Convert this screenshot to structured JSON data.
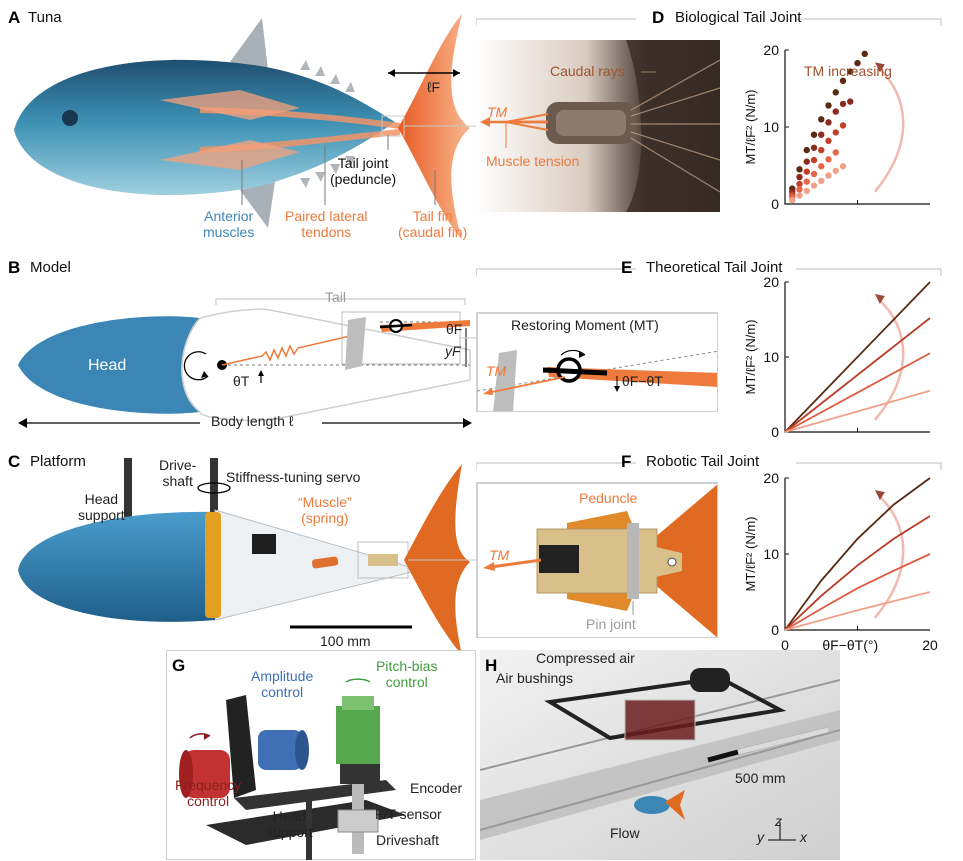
{
  "panels": {
    "A": {
      "letter": "A",
      "title": "Tuna",
      "fin_length": "ℓF",
      "tail_joint": "Tail joint",
      "tail_joint2": "(peduncle)",
      "anterior1": "Anterior",
      "anterior2": "muscles",
      "paired1": "Paired lateral",
      "paired2": "tendons",
      "fin1": "Tail fin",
      "fin2": "(caudal fin)"
    },
    "B": {
      "letter": "B",
      "title": "Model",
      "tail": "Tail",
      "head": "Head",
      "theta_t": "θT",
      "theta_f": "θF",
      "y_f": "yF",
      "body_length": "Body length ℓ"
    },
    "C": {
      "letter": "C",
      "title": "Platform",
      "drive1": "Drive-",
      "drive2": "shaft",
      "servo": "Stiffness-tuning servo",
      "head1": "Head",
      "head2": "support",
      "muscle1": "“Muscle”",
      "muscle2": "(spring)",
      "scale": "100 mm"
    },
    "D": {
      "letter": "D",
      "title": "Biological Tail Joint",
      "caudal_rays": "Caudal rays",
      "tm": "TM",
      "muscle_tension": "Muscle tension",
      "tm_increasing": "TM increasing"
    },
    "E": {
      "letter": "E",
      "title": "Theoretical Tail Joint",
      "restoring": "Restoring Moment (MT)",
      "tm": "TM",
      "angle": "θF−θT"
    },
    "F": {
      "letter": "F",
      "title": "Robotic Tail Joint",
      "peduncle": "Peduncle",
      "tm": "TM",
      "pin_joint": "Pin joint"
    },
    "G": {
      "letter": "G",
      "amp1": "Amplitude",
      "amp2": "control",
      "pitch1": "Pitch-bias",
      "pitch2": "control",
      "freq1": "Frequency",
      "freq2": "control",
      "encoder": "Encoder",
      "ft": "F/T sensor",
      "head1": "Head",
      "head2": "support",
      "driveshaft": "Driveshaft"
    },
    "H": {
      "letter": "H",
      "compressed": "Compressed air",
      "bushings": "Air bushings",
      "scale": "500 mm",
      "flow": "Flow",
      "ax_y": "y",
      "ax_z": "z",
      "ax_x": "x"
    }
  },
  "chart_data": [
    {
      "panel": "D",
      "type": "scatter",
      "ylabel": "MT/ℓF² (N/m)",
      "xlim": [
        0,
        20
      ],
      "ylim": [
        0,
        20
      ],
      "yticks": [
        "20",
        "10",
        "0"
      ],
      "series": [
        {
          "color": "#5a2a12",
          "points": [
            [
              1,
              2
            ],
            [
              2,
              4.5
            ],
            [
              3,
              7
            ],
            [
              4,
              9
            ],
            [
              5,
              11
            ],
            [
              6,
              12.8
            ],
            [
              7,
              14.5
            ],
            [
              8,
              16
            ],
            [
              9,
              17.2
            ],
            [
              10,
              18.3
            ],
            [
              11,
              19.5
            ]
          ]
        },
        {
          "color": "#8b2a20",
          "points": [
            [
              1,
              1.6
            ],
            [
              2,
              3.5
            ],
            [
              3,
              5.5
            ],
            [
              4,
              7.3
            ],
            [
              5,
              9
            ],
            [
              6,
              10.6
            ],
            [
              7,
              12
            ],
            [
              8,
              13
            ],
            [
              9,
              13.3
            ]
          ]
        },
        {
          "color": "#c2402a",
          "points": [
            [
              1,
              1.2
            ],
            [
              2,
              2.6
            ],
            [
              3,
              4.2
            ],
            [
              4,
              5.7
            ],
            [
              5,
              7
            ],
            [
              6,
              8.2
            ],
            [
              7,
              9.3
            ],
            [
              8,
              10.2
            ]
          ]
        },
        {
          "color": "#e86648",
          "points": [
            [
              1,
              0.9
            ],
            [
              2,
              1.9
            ],
            [
              3,
              2.9
            ],
            [
              4,
              3.9
            ],
            [
              5,
              4.9
            ],
            [
              6,
              5.8
            ],
            [
              7,
              6.7
            ]
          ]
        },
        {
          "color": "#f2a08a",
          "points": [
            [
              1,
              0.5
            ],
            [
              2,
              1.1
            ],
            [
              3,
              1.7
            ],
            [
              4,
              2.4
            ],
            [
              5,
              3
            ],
            [
              6,
              3.7
            ],
            [
              7,
              4.3
            ],
            [
              8,
              4.9
            ]
          ]
        }
      ]
    },
    {
      "panel": "E",
      "type": "line",
      "ylabel": "MT/ℓF² (N/m)",
      "xlim": [
        0,
        20
      ],
      "ylim": [
        0,
        20
      ],
      "yticks": [
        "20",
        "10",
        "0"
      ],
      "series": [
        {
          "color": "#5a2a12",
          "values": [
            [
              0,
              0
            ],
            [
              20,
              20
            ]
          ]
        },
        {
          "color": "#b83a26",
          "values": [
            [
              0,
              0
            ],
            [
              20,
              15.2
            ]
          ]
        },
        {
          "color": "#dd5a3e",
          "values": [
            [
              0,
              0
            ],
            [
              20,
              10.5
            ]
          ]
        },
        {
          "color": "#f2a08a",
          "values": [
            [
              0,
              0
            ],
            [
              20,
              5.5
            ]
          ]
        }
      ]
    },
    {
      "panel": "F",
      "type": "line",
      "ylabel": "MT/ℓF² (N/m)",
      "xlabel": "θF−θT(°)",
      "xlim": [
        0,
        20
      ],
      "ylim": [
        0,
        20
      ],
      "yticks": [
        "20",
        "10",
        "0"
      ],
      "xticks": [
        "0",
        "20"
      ],
      "series": [
        {
          "color": "#5a2a12",
          "values": [
            [
              0,
              0
            ],
            [
              5,
              6.5
            ],
            [
              10,
              12
            ],
            [
              15,
              16.5
            ],
            [
              20,
              20
            ]
          ]
        },
        {
          "color": "#b83a26",
          "values": [
            [
              0,
              0
            ],
            [
              5,
              4.5
            ],
            [
              10,
              8.5
            ],
            [
              15,
              12
            ],
            [
              20,
              15
            ]
          ]
        },
        {
          "color": "#dd5a3e",
          "values": [
            [
              0,
              0
            ],
            [
              5,
              2.8
            ],
            [
              10,
              5.5
            ],
            [
              15,
              7.8
            ],
            [
              20,
              10
            ]
          ]
        },
        {
          "color": "#f2a08a",
          "values": [
            [
              0,
              0
            ],
            [
              5,
              1.3
            ],
            [
              10,
              2.6
            ],
            [
              15,
              3.8
            ],
            [
              20,
              5
            ]
          ]
        }
      ]
    }
  ]
}
